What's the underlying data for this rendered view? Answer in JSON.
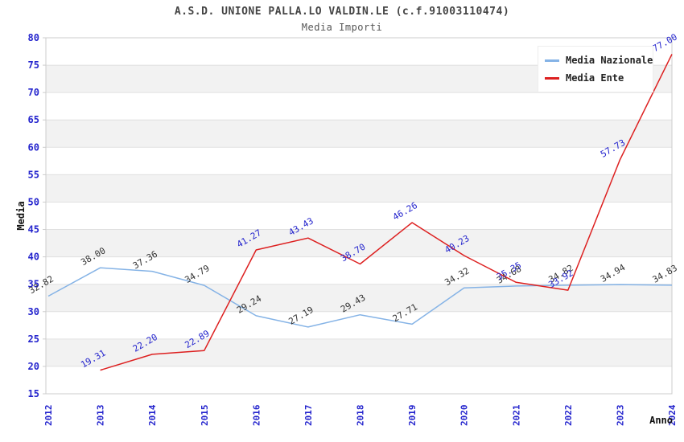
{
  "header": {
    "title": "A.S.D. UNIONE PALLA.LO VALDIN.LE (c.f.91003110474)",
    "subtitle": "Media Importi"
  },
  "legend": {
    "position": "top-right",
    "items": [
      {
        "label": "Media Nazionale",
        "color": "#85B3E6"
      },
      {
        "label": "Media Ente",
        "color": "#DD2020"
      }
    ]
  },
  "chart_data": {
    "type": "line",
    "title": "A.S.D. UNIONE PALLA.LO VALDIN.LE (c.f.91003110474)",
    "subtitle": "Media Importi",
    "xlabel": "Anno",
    "ylabel": "Media",
    "x": [
      "2012",
      "2013",
      "2014",
      "2015",
      "2016",
      "2017",
      "2018",
      "2019",
      "2020",
      "2021",
      "2022",
      "2023",
      "2024"
    ],
    "ylim": [
      15,
      80
    ],
    "ytick_step": 5,
    "grid": "horizontal-bands",
    "legend_position": "top-right",
    "point_labels": "two-decimals",
    "series": [
      {
        "name": "Media Nazionale",
        "color": "#85B3E6",
        "label_color": "#333333",
        "values": [
          32.82,
          38.0,
          37.36,
          34.79,
          29.24,
          27.19,
          29.43,
          27.71,
          34.32,
          34.68,
          34.82,
          34.94,
          34.83
        ]
      },
      {
        "name": "Media Ente",
        "color": "#DD2020",
        "label_color": "#2424CD",
        "values": [
          null,
          19.31,
          22.2,
          22.89,
          41.27,
          43.43,
          38.7,
          46.26,
          40.23,
          35.35,
          33.92,
          57.73,
          77.0
        ]
      }
    ],
    "styles": {
      "band_colors": [
        "#FFFFFF",
        "#F2F2F2"
      ],
      "gridline_color": "#E0E0E0",
      "border_color": "#CCCCCC",
      "tick_label_color": "#2424CD",
      "axis_title_color": "#111111"
    }
  }
}
